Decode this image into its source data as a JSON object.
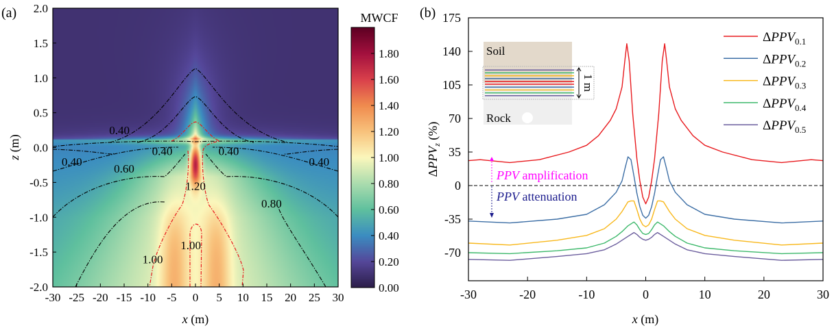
{
  "chart_data": [
    {
      "type": "heatmap",
      "panel_label": "(a)",
      "xlabel_var": "x",
      "xlabel_unit": " (m)",
      "ylabel_var": "z",
      "ylabel_unit": " (m)",
      "xlim": [
        -30,
        30
      ],
      "ylim": [
        -2.0,
        2.0
      ],
      "xticks": [
        "-30",
        "-25",
        "-20",
        "-15",
        "-10",
        "-5",
        "0",
        "5",
        "10",
        "15",
        "20",
        "25",
        "30"
      ],
      "yticks": [
        "2.0",
        "1.5",
        "1.0",
        "0.5",
        "0.0",
        "-0.5",
        "-1.0",
        "-1.5",
        "-2.0"
      ],
      "colorbar": {
        "title": "MWCF",
        "range": [
          0,
          2.0
        ],
        "ticks": [
          "0.00",
          "0.20",
          "0.40",
          "0.60",
          "0.80",
          "1.00",
          "1.20",
          "1.40",
          "1.60",
          "1.80"
        ],
        "colors": [
          "#2c1d48",
          "#55479a",
          "#3b8dc1",
          "#5fc09e",
          "#abdcae",
          "#fbf7bc",
          "#f8c27c",
          "#f08b4e",
          "#d9404b",
          "#a3103e",
          "#5c0022"
        ]
      },
      "contour_labels": [
        {
          "text": "0.40",
          "x": -16,
          "z": 0.25
        },
        {
          "text": "0.40",
          "x": -26,
          "z": -0.2
        },
        {
          "text": "0.40",
          "x": -7,
          "z": -0.05
        },
        {
          "text": "0.40",
          "x": 7,
          "z": -0.05
        },
        {
          "text": "0.40",
          "x": 26,
          "z": -0.2
        },
        {
          "text": "0.60",
          "x": -15,
          "z": -0.3
        },
        {
          "text": "1.20",
          "x": 0,
          "z": -0.55
        },
        {
          "text": "0.80",
          "x": 16,
          "z": -0.8
        },
        {
          "text": "1.00",
          "x": -1,
          "z": -1.4
        },
        {
          "text": "1.00",
          "x": -9,
          "z": -1.6
        }
      ]
    },
    {
      "type": "line",
      "panel_label": "(b)",
      "xlabel_var": "x",
      "xlabel_unit": " (m)",
      "ylabel": "ΔPPVz (%)",
      "xlim": [
        -30,
        30
      ],
      "ylim": [
        -98,
        175
      ],
      "xticks": [
        -30,
        -20,
        -10,
        0,
        10,
        20,
        30
      ],
      "yticks": [
        175,
        140,
        105,
        70,
        35,
        0,
        -35,
        -70
      ],
      "reference_line_y": 0,
      "series": [
        {
          "name": "ΔPPV",
          "sub": "0.1",
          "color": "#e8191d",
          "x": [
            -30,
            -28,
            -23,
            -18,
            -13,
            -10,
            -8,
            -6,
            -5,
            -4,
            -3.5,
            -3.2,
            -2.8,
            -2.2,
            -1.5,
            -1,
            -0.5,
            0
          ],
          "y": [
            26,
            27,
            24,
            27,
            35,
            42,
            52,
            68,
            80,
            103,
            132,
            148,
            130,
            75,
            28,
            5,
            -12,
            -19
          ]
        },
        {
          "name": "ΔPPV",
          "sub": "0.2",
          "color": "#3c6ea5",
          "x": [
            -30,
            -23,
            -15,
            -10,
            -7,
            -5,
            -4,
            -3.5,
            -3,
            -2.5,
            -2,
            -1.5,
            -1,
            -0.5,
            0
          ],
          "y": [
            -37,
            -39,
            -35,
            -30,
            -20,
            -7,
            5,
            18,
            30,
            27,
            10,
            -8,
            -22,
            -31,
            -34
          ]
        },
        {
          "name": "ΔPPV",
          "sub": "0.3",
          "color": "#f8b719",
          "x": [
            -30,
            -23,
            -15,
            -10,
            -7,
            -5,
            -4,
            -3,
            -2.5,
            -2,
            -1.5,
            -1,
            -0.5,
            0
          ],
          "y": [
            -60,
            -62,
            -57,
            -52,
            -45,
            -35,
            -27,
            -17,
            -16,
            -16,
            -25,
            -35,
            -41,
            -43
          ]
        },
        {
          "name": "ΔPPV",
          "sub": "0.4",
          "color": "#3cb86a",
          "x": [
            -30,
            -23,
            -15,
            -10,
            -7,
            -5,
            -4,
            -3,
            -2,
            -1.5,
            -1,
            -0.5,
            0
          ],
          "y": [
            -70,
            -71,
            -68,
            -65,
            -60,
            -53,
            -48,
            -42,
            -38,
            -41,
            -46,
            -50,
            -51
          ]
        },
        {
          "name": "ΔPPV",
          "sub": "0.5",
          "color": "#6a5c9c",
          "x": [
            -30,
            -23,
            -15,
            -10,
            -7,
            -5,
            -4,
            -3,
            -2,
            -1.5,
            -1,
            -0.5,
            0
          ],
          "y": [
            -77,
            -78,
            -74,
            -71,
            -67,
            -61,
            -57,
            -53,
            -49,
            -51,
            -54,
            -56,
            -57
          ]
        }
      ],
      "inset": {
        "soil": "Soil",
        "rock": "Rock",
        "thickness": "1 m"
      },
      "annotations": {
        "amp_var": "PPV",
        "amp_text": " amplification",
        "amp_color": "#ff00ff",
        "att_var": "PPV",
        "att_text": " attenuation",
        "att_color": "#1a1a8c"
      }
    }
  ]
}
